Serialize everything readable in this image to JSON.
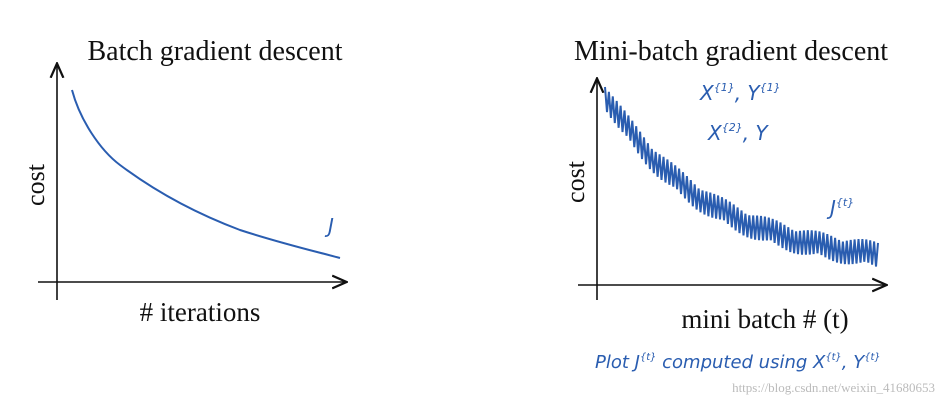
{
  "left": {
    "title": "Batch gradient descent",
    "y_label": "cost",
    "x_label": "# iterations",
    "note": "J"
  },
  "right": {
    "title": "Mini-batch gradient descent",
    "y_label": "cost",
    "x_label": "mini batch # (t)",
    "notes": [
      [
        "X",
        "{1}",
        ", Y",
        "{1}"
      ],
      [
        "X",
        "{2}",
        ", Y"
      ],
      [
        "J",
        "{t}"
      ]
    ],
    "caption": [
      "Plot J",
      "{t}",
      " computed using X",
      "{t}",
      ", Y",
      "{t}"
    ]
  },
  "watermark": "https://blog.csdn.net/weixin_41680653"
}
